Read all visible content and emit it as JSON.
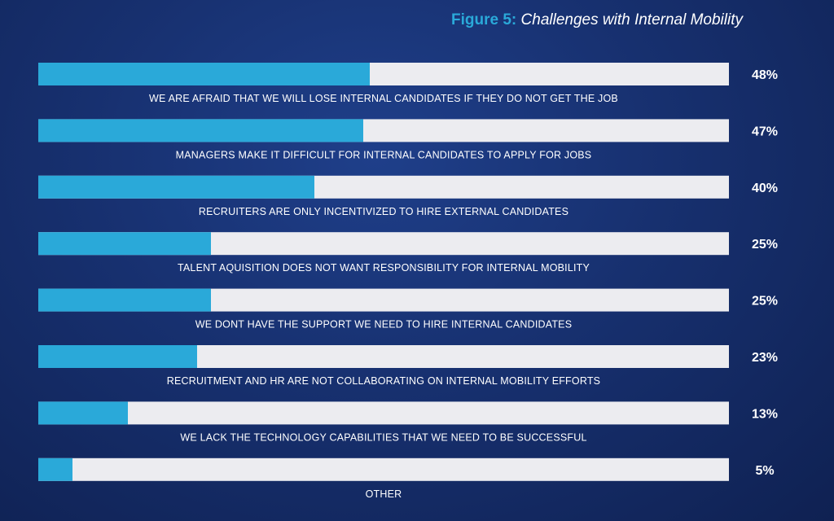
{
  "figure": {
    "prefix": "Figure 5:",
    "title": "Challenges with Internal Mobility"
  },
  "colors": {
    "background": "#17306f",
    "bar_fill": "#2aa9d9",
    "bar_track": "#ececf0",
    "text": "#ffffff",
    "accent": "#2aa9d9"
  },
  "chart_data": {
    "type": "bar",
    "orientation": "horizontal",
    "title": "Figure 5: Challenges with Internal Mobility",
    "xlim": [
      0,
      100
    ],
    "unit": "%",
    "grid": false,
    "legend": "none",
    "categories": [
      "WE ARE AFRAID THAT WE WILL LOSE INTERNAL CANDIDATES IF THEY DO NOT GET THE JOB",
      "MANAGERS MAKE IT DIFFICULT FOR INTERNAL CANDIDATES TO APPLY FOR JOBS",
      "RECRUITERS ARE ONLY INCENTIVIZED TO HIRE EXTERNAL CANDIDATES",
      "TALENT AQUISITION DOES NOT WANT RESPONSIBILITY FOR INTERNAL MOBILITY",
      "WE DONT HAVE THE SUPPORT WE NEED TO HIRE INTERNAL CANDIDATES",
      "RECRUITMENT AND HR ARE NOT COLLABORATING ON INTERNAL MOBILITY EFFORTS",
      "WE LACK THE TECHNOLOGY CAPABILITIES THAT WE NEED TO BE SUCCESSFUL",
      "OTHER"
    ],
    "values": [
      48,
      47,
      40,
      25,
      25,
      23,
      13,
      5
    ],
    "labels": [
      "48%",
      "47%",
      "40%",
      "25%",
      "25%",
      "23%",
      "13%",
      "5%"
    ]
  }
}
